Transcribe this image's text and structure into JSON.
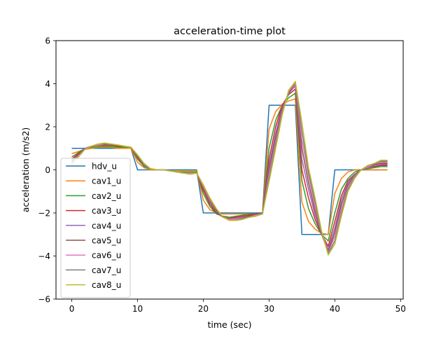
{
  "chart_data": {
    "type": "line",
    "title": "acceleration-time plot",
    "xlabel": "time (sec)",
    "ylabel": "acceleration (m/s2)",
    "xlim": [
      -2.4,
      50.4
    ],
    "ylim": [
      -6,
      6
    ],
    "xticks": [
      0,
      10,
      20,
      30,
      40,
      50
    ],
    "yticks": [
      -6,
      -4,
      -2,
      0,
      2,
      4,
      6
    ],
    "grid": false,
    "legend_position": "lower-left",
    "series": [
      {
        "name": "hdv_u",
        "color": "#1f77b4",
        "x": [
          0,
          9,
          10,
          19,
          20,
          29,
          30,
          34,
          35,
          39,
          40,
          48
        ],
        "y": [
          1.0,
          1.0,
          0.0,
          0.0,
          -2.0,
          -2.0,
          3.0,
          3.0,
          -3.0,
          -3.0,
          0.0,
          0.0
        ]
      },
      {
        "name": "cav1_u",
        "color": "#ff7f0e",
        "x": [
          0,
          1,
          2,
          3,
          4,
          5,
          6,
          7,
          8,
          9,
          10,
          11,
          12,
          13,
          14,
          15,
          16,
          17,
          18,
          19,
          20,
          21,
          22,
          23,
          24,
          25,
          26,
          27,
          28,
          29,
          30,
          31,
          32,
          33,
          34,
          35,
          36,
          37,
          38,
          39,
          40,
          41,
          42,
          43,
          44,
          45,
          46,
          47,
          48
        ],
        "y": [
          0.75,
          0.85,
          0.95,
          1.0,
          1.05,
          1.05,
          1.05,
          1.0,
          1.0,
          1.0,
          0.35,
          0.1,
          0.0,
          0.0,
          0.0,
          -0.05,
          -0.05,
          -0.05,
          -0.05,
          -0.05,
          -1.4,
          -1.85,
          -2.0,
          -2.05,
          -2.05,
          -2.05,
          -2.05,
          -2.05,
          -2.05,
          -2.05,
          1.9,
          2.7,
          3.05,
          3.2,
          3.3,
          -1.5,
          -2.4,
          -2.75,
          -2.95,
          -3.0,
          -1.1,
          -0.4,
          -0.1,
          0.0,
          0.0,
          0.0,
          0.0,
          0.0,
          0.0
        ]
      },
      {
        "name": "cav2_u",
        "color": "#2ca02c",
        "x": [
          0,
          1,
          2,
          3,
          4,
          5,
          6,
          7,
          8,
          9,
          10,
          11,
          12,
          13,
          14,
          15,
          16,
          17,
          18,
          19,
          20,
          21,
          22,
          23,
          24,
          25,
          26,
          27,
          28,
          29,
          30,
          31,
          32,
          33,
          34,
          35,
          36,
          37,
          38,
          39,
          40,
          41,
          42,
          43,
          44,
          45,
          46,
          47,
          48
        ],
        "y": [
          0.6,
          0.8,
          1.0,
          1.05,
          1.1,
          1.1,
          1.1,
          1.05,
          1.05,
          1.05,
          0.5,
          0.15,
          0.05,
          0.0,
          0.0,
          -0.05,
          -0.1,
          -0.1,
          -0.1,
          -0.1,
          -1.1,
          -1.7,
          -2.05,
          -2.15,
          -2.2,
          -2.15,
          -2.1,
          -2.05,
          -2.05,
          -2.05,
          1.0,
          2.3,
          3.0,
          3.35,
          3.55,
          -0.5,
          -1.8,
          -2.5,
          -3.0,
          -3.3,
          -2.0,
          -0.9,
          -0.4,
          -0.1,
          0.0,
          0.05,
          0.1,
          0.15,
          0.15
        ]
      },
      {
        "name": "cav3_u",
        "color": "#d62728",
        "x": [
          0,
          1,
          2,
          3,
          4,
          5,
          6,
          7,
          8,
          9,
          10,
          11,
          12,
          13,
          14,
          15,
          16,
          17,
          18,
          19,
          20,
          21,
          22,
          23,
          24,
          25,
          26,
          27,
          28,
          29,
          30,
          31,
          32,
          33,
          34,
          35,
          36,
          37,
          38,
          39,
          40,
          41,
          42,
          43,
          44,
          45,
          46,
          47,
          48
        ],
        "y": [
          0.5,
          0.75,
          1.0,
          1.1,
          1.15,
          1.15,
          1.15,
          1.1,
          1.1,
          1.05,
          0.55,
          0.2,
          0.05,
          0.0,
          0.0,
          -0.05,
          -0.1,
          -0.15,
          -0.15,
          -0.15,
          -0.95,
          -1.6,
          -2.0,
          -2.2,
          -2.25,
          -2.2,
          -2.15,
          -2.1,
          -2.05,
          -2.05,
          0.5,
          2.0,
          3.0,
          3.5,
          3.75,
          0.0,
          -1.3,
          -2.3,
          -3.0,
          -3.55,
          -2.4,
          -1.2,
          -0.5,
          -0.2,
          0.0,
          0.1,
          0.15,
          0.2,
          0.2
        ]
      },
      {
        "name": "cav4_u",
        "color": "#9467bd",
        "x": [
          0,
          1,
          2,
          3,
          4,
          5,
          6,
          7,
          8,
          9,
          10,
          11,
          12,
          13,
          14,
          15,
          16,
          17,
          18,
          19,
          20,
          21,
          22,
          23,
          24,
          25,
          26,
          27,
          28,
          29,
          30,
          31,
          32,
          33,
          34,
          35,
          36,
          37,
          38,
          39,
          40,
          41,
          42,
          43,
          44,
          45,
          46,
          47,
          48
        ],
        "y": [
          0.45,
          0.7,
          1.0,
          1.1,
          1.15,
          1.2,
          1.15,
          1.15,
          1.1,
          1.05,
          0.6,
          0.2,
          0.05,
          0.0,
          0.0,
          -0.05,
          -0.1,
          -0.15,
          -0.15,
          -0.15,
          -0.85,
          -1.5,
          -1.95,
          -2.2,
          -2.3,
          -2.25,
          -2.2,
          -2.15,
          -2.1,
          -2.05,
          0.2,
          1.7,
          2.9,
          3.55,
          3.9,
          0.5,
          -0.9,
          -2.1,
          -3.0,
          -3.7,
          -2.7,
          -1.4,
          -0.6,
          -0.2,
          0.0,
          0.1,
          0.2,
          0.25,
          0.25
        ]
      },
      {
        "name": "cav5_u",
        "color": "#8c564b",
        "x": [
          0,
          1,
          2,
          3,
          4,
          5,
          6,
          7,
          8,
          9,
          10,
          11,
          12,
          13,
          14,
          15,
          16,
          17,
          18,
          19,
          20,
          21,
          22,
          23,
          24,
          25,
          26,
          27,
          28,
          29,
          30,
          31,
          32,
          33,
          34,
          35,
          36,
          37,
          38,
          39,
          40,
          41,
          42,
          43,
          44,
          45,
          46,
          47,
          48
        ],
        "y": [
          0.4,
          0.7,
          0.95,
          1.1,
          1.15,
          1.2,
          1.15,
          1.15,
          1.1,
          1.05,
          0.6,
          0.25,
          0.05,
          0.0,
          0.0,
          -0.05,
          -0.1,
          -0.15,
          -0.15,
          -0.15,
          -0.8,
          -1.45,
          -1.9,
          -2.2,
          -2.3,
          -2.3,
          -2.25,
          -2.15,
          -2.1,
          -2.05,
          0.0,
          1.5,
          2.8,
          3.6,
          4.0,
          1.0,
          -0.6,
          -1.9,
          -3.0,
          -3.8,
          -2.9,
          -1.6,
          -0.7,
          -0.25,
          0.0,
          0.15,
          0.25,
          0.3,
          0.3
        ]
      },
      {
        "name": "cav6_u",
        "color": "#e377c2",
        "x": [
          0,
          1,
          2,
          3,
          4,
          5,
          6,
          7,
          8,
          9,
          10,
          11,
          12,
          13,
          14,
          15,
          16,
          17,
          18,
          19,
          20,
          21,
          22,
          23,
          24,
          25,
          26,
          27,
          28,
          29,
          30,
          31,
          32,
          33,
          34,
          35,
          36,
          37,
          38,
          39,
          40,
          41,
          42,
          43,
          44,
          45,
          46,
          47,
          48
        ],
        "y": [
          0.35,
          0.65,
          0.95,
          1.1,
          1.15,
          1.2,
          1.2,
          1.15,
          1.1,
          1.05,
          0.65,
          0.25,
          0.05,
          0.0,
          0.0,
          -0.05,
          -0.1,
          -0.15,
          -0.15,
          -0.15,
          -0.75,
          -1.4,
          -1.85,
          -2.2,
          -2.3,
          -2.3,
          -2.25,
          -2.2,
          -2.1,
          -2.05,
          -0.2,
          1.3,
          2.7,
          3.65,
          4.05,
          1.4,
          -0.3,
          -1.7,
          -2.95,
          -3.85,
          -3.1,
          -1.8,
          -0.8,
          -0.3,
          0.0,
          0.15,
          0.3,
          0.35,
          0.35
        ]
      },
      {
        "name": "cav7_u",
        "color": "#7f7f7f",
        "x": [
          0,
          1,
          2,
          3,
          4,
          5,
          6,
          7,
          8,
          9,
          10,
          11,
          12,
          13,
          14,
          15,
          16,
          17,
          18,
          19,
          20,
          21,
          22,
          23,
          24,
          25,
          26,
          27,
          28,
          29,
          30,
          31,
          32,
          33,
          34,
          35,
          36,
          37,
          38,
          39,
          40,
          41,
          42,
          43,
          44,
          45,
          46,
          47,
          48
        ],
        "y": [
          0.3,
          0.6,
          0.95,
          1.1,
          1.2,
          1.2,
          1.2,
          1.15,
          1.1,
          1.05,
          0.65,
          0.25,
          0.05,
          0.0,
          0.0,
          -0.05,
          -0.1,
          -0.15,
          -0.2,
          -0.15,
          -0.7,
          -1.35,
          -1.85,
          -2.2,
          -2.35,
          -2.35,
          -2.25,
          -2.2,
          -2.15,
          -2.05,
          -0.4,
          1.15,
          2.6,
          3.7,
          4.1,
          1.8,
          -0.1,
          -1.5,
          -2.9,
          -3.9,
          -3.3,
          -2.0,
          -0.9,
          -0.35,
          0.0,
          0.2,
          0.3,
          0.4,
          0.4
        ]
      },
      {
        "name": "cav8_u",
        "color": "#bcbd22",
        "x": [
          0,
          1,
          2,
          3,
          4,
          5,
          6,
          7,
          8,
          9,
          10,
          11,
          12,
          13,
          14,
          15,
          16,
          17,
          18,
          19,
          20,
          21,
          22,
          23,
          24,
          25,
          26,
          27,
          28,
          29,
          30,
          31,
          32,
          33,
          34,
          35,
          36,
          37,
          38,
          39,
          40,
          41,
          42,
          43,
          44,
          45,
          46,
          47,
          48
        ],
        "y": [
          0.3,
          0.6,
          0.95,
          1.1,
          1.2,
          1.25,
          1.2,
          1.15,
          1.1,
          1.05,
          0.7,
          0.3,
          0.05,
          0.0,
          0.0,
          -0.05,
          -0.1,
          -0.15,
          -0.2,
          -0.15,
          -0.7,
          -1.3,
          -1.8,
          -2.2,
          -2.35,
          -2.35,
          -2.3,
          -2.2,
          -2.15,
          -2.05,
          -0.55,
          1.0,
          2.55,
          3.7,
          4.1,
          2.2,
          0.1,
          -1.3,
          -2.85,
          -3.95,
          -3.45,
          -2.15,
          -1.0,
          -0.4,
          0.0,
          0.2,
          0.3,
          0.45,
          0.45
        ]
      }
    ]
  }
}
